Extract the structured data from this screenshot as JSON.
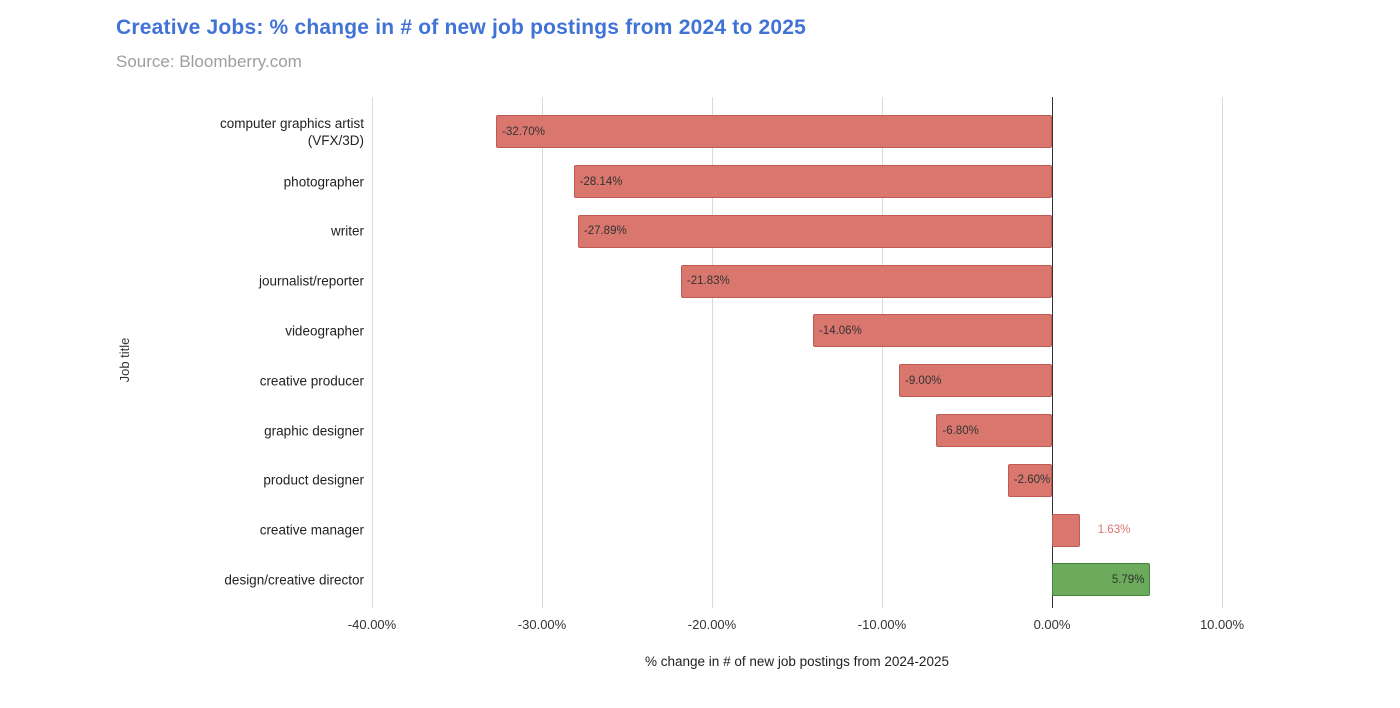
{
  "header": {
    "title": "Creative Jobs: % change in # of new job postings from 2024 to 2025",
    "subtitle": "Source: Bloomberry.com",
    "title_color": "#4173d6",
    "subtitle_color": "#9e9e9e"
  },
  "chart_data": {
    "type": "bar",
    "orientation": "horizontal",
    "title": "Creative Jobs: % change in # of new job postings from 2024 to 2025",
    "subtitle": "Source: Bloomberry.com",
    "xlabel": "% change in # of new job postings from 2024-2025",
    "ylabel": "Job title",
    "categories": [
      "computer graphics artist\n(VFX/3D)",
      "photographer",
      "writer",
      "journalist/reporter",
      "videographer",
      "creative producer",
      "graphic designer",
      "product designer",
      "creative manager",
      "design/creative director"
    ],
    "values": [
      -32.7,
      -28.14,
      -27.89,
      -21.83,
      -14.06,
      -9.0,
      -6.8,
      -2.6,
      1.63,
      5.79
    ],
    "value_labels": [
      "-32.70%",
      "-28.14%",
      "-27.89%",
      "-21.83%",
      "-14.06%",
      "-9.00%",
      "-6.80%",
      "-2.60%",
      "1.63%",
      "5.79%"
    ],
    "bar_colors": [
      "red",
      "red",
      "red",
      "red",
      "red",
      "red",
      "red",
      "red",
      "red",
      "green"
    ],
    "palette": {
      "red": {
        "fill": "#d9776f",
        "stroke": "#c05b53"
      },
      "green": {
        "fill": "#6bab5b",
        "stroke": "#46823c"
      }
    },
    "xlim": [
      -40,
      10
    ],
    "x_ticks": [
      -40,
      -30,
      -20,
      -10,
      0,
      10
    ],
    "x_tick_labels": [
      "-40.00%",
      "-30.00%",
      "-20.00%",
      "-10.00%",
      "0.00%",
      "10.00%"
    ],
    "grid": true,
    "legend": false,
    "gridline_color": "#dadada",
    "zero_line_color": "#333333"
  }
}
